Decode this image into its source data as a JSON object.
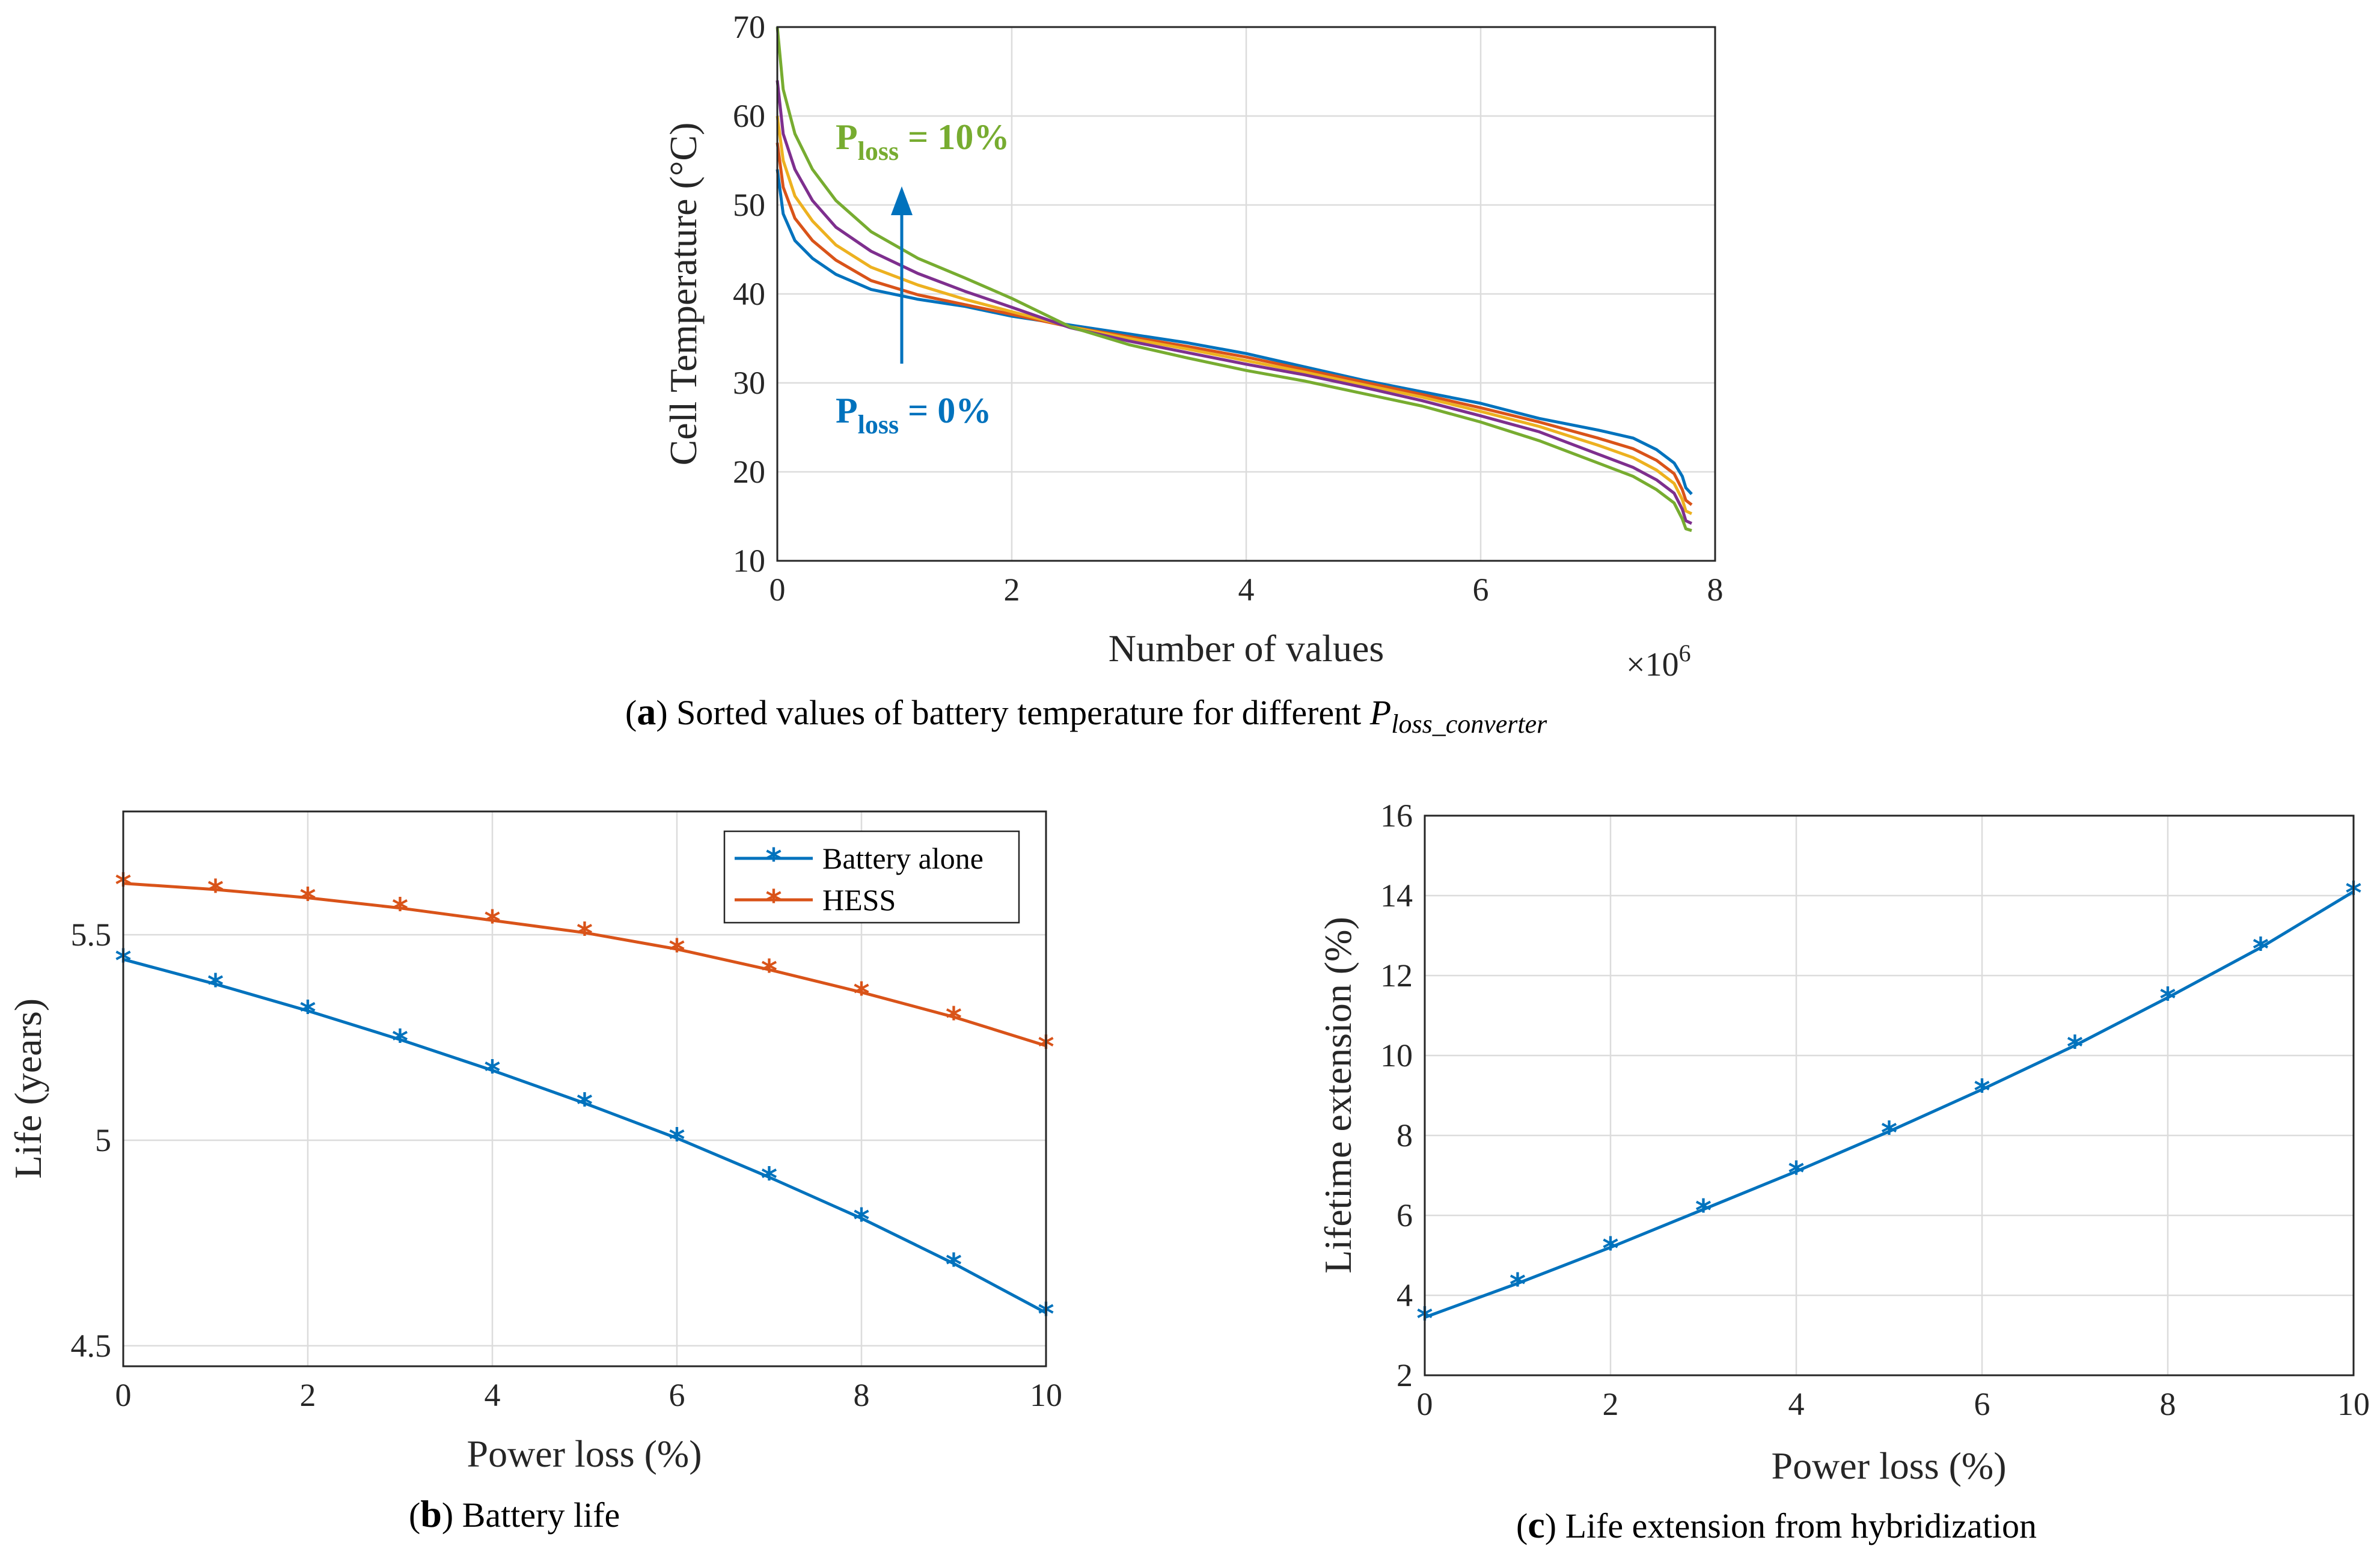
{
  "colors": {
    "blue": "#0072BD",
    "orange": "#D95319",
    "yellow": "#EDB120",
    "purple": "#7E2F8E",
    "green": "#77AC30",
    "grid": "#dcdcdc",
    "axis": "#262626"
  },
  "chart_data": [
    {
      "id": "a",
      "type": "line",
      "xlabel": "Number of values",
      "ylabel": "Cell Temperature (°C)",
      "xlim": [
        0,
        8
      ],
      "ylim": [
        10,
        70
      ],
      "xticks": [
        "0",
        "2",
        "4",
        "6",
        "8"
      ],
      "yticks": [
        "10",
        "20",
        "30",
        "40",
        "50",
        "60",
        "70"
      ],
      "multiplier": {
        "base": "×10",
        "exp": "6"
      },
      "caption": {
        "letter": "a",
        "text": " Sorted values of battery temperature for different ",
        "sym": "P",
        "sub": "loss_converter"
      },
      "annotations": [
        {
          "main": "P",
          "sub": "loss",
          "rest": " = 10%",
          "color": "#77AC30"
        },
        {
          "main": "P",
          "sub": "loss",
          "rest": " = 0%",
          "color": "#0072BD"
        }
      ],
      "series": [
        {
          "color": "#0072BD",
          "points": [
            [
              0,
              54
            ],
            [
              0.05,
              49
            ],
            [
              0.15,
              46
            ],
            [
              0.3,
              44
            ],
            [
              0.5,
              42.2
            ],
            [
              0.8,
              40.5
            ],
            [
              1.2,
              39.4
            ],
            [
              1.6,
              38.6
            ],
            [
              2.0,
              37.5
            ],
            [
              2.5,
              36.5
            ],
            [
              3.0,
              35.5
            ],
            [
              3.5,
              34.5
            ],
            [
              4.0,
              33.3
            ],
            [
              4.5,
              31.8
            ],
            [
              5.0,
              30.3
            ],
            [
              5.5,
              29.0
            ],
            [
              6.0,
              27.7
            ],
            [
              6.5,
              26.0
            ],
            [
              7.0,
              24.7
            ],
            [
              7.3,
              23.8
            ],
            [
              7.5,
              22.5
            ],
            [
              7.65,
              21.0
            ],
            [
              7.72,
              19.5
            ],
            [
              7.75,
              18.2
            ],
            [
              7.8,
              17.5
            ]
          ]
        },
        {
          "color": "#D95319",
          "points": [
            [
              0,
              57
            ],
            [
              0.05,
              52
            ],
            [
              0.15,
              48.5
            ],
            [
              0.3,
              46
            ],
            [
              0.5,
              43.8
            ],
            [
              0.8,
              41.5
            ],
            [
              1.2,
              39.9
            ],
            [
              1.6,
              38.8
            ],
            [
              2.0,
              37.7
            ],
            [
              2.5,
              36.3
            ],
            [
              3.0,
              35.2
            ],
            [
              3.5,
              34.1
            ],
            [
              4.0,
              32.9
            ],
            [
              4.5,
              31.5
            ],
            [
              5.0,
              30.1
            ],
            [
              5.5,
              28.7
            ],
            [
              6.0,
              27.2
            ],
            [
              6.5,
              25.6
            ],
            [
              7.0,
              23.8
            ],
            [
              7.3,
              22.6
            ],
            [
              7.5,
              21.3
            ],
            [
              7.65,
              19.8
            ],
            [
              7.72,
              18.0
            ],
            [
              7.75,
              16.8
            ],
            [
              7.8,
              16.3
            ]
          ]
        },
        {
          "color": "#EDB120",
          "points": [
            [
              0,
              60
            ],
            [
              0.05,
              55
            ],
            [
              0.15,
              51
            ],
            [
              0.3,
              48.2
            ],
            [
              0.5,
              45.5
            ],
            [
              0.8,
              43
            ],
            [
              1.2,
              41
            ],
            [
              1.6,
              39.4
            ],
            [
              2.0,
              38.0
            ],
            [
              2.5,
              36.3
            ],
            [
              3.0,
              35.0
            ],
            [
              3.5,
              33.8
            ],
            [
              4.0,
              32.5
            ],
            [
              4.5,
              31.2
            ],
            [
              5.0,
              29.8
            ],
            [
              5.5,
              28.4
            ],
            [
              6.0,
              26.8
            ],
            [
              6.5,
              25.1
            ],
            [
              7.0,
              23.0
            ],
            [
              7.3,
              21.6
            ],
            [
              7.5,
              20.2
            ],
            [
              7.65,
              18.7
            ],
            [
              7.72,
              16.9
            ],
            [
              7.75,
              15.6
            ],
            [
              7.8,
              15.3
            ]
          ]
        },
        {
          "color": "#7E2F8E",
          "points": [
            [
              0,
              64
            ],
            [
              0.05,
              58
            ],
            [
              0.15,
              54
            ],
            [
              0.3,
              50.5
            ],
            [
              0.5,
              47.5
            ],
            [
              0.8,
              44.8
            ],
            [
              1.2,
              42.3
            ],
            [
              1.6,
              40.3
            ],
            [
              2.0,
              38.5
            ],
            [
              2.5,
              36.2
            ],
            [
              3.0,
              34.7
            ],
            [
              3.5,
              33.4
            ],
            [
              4.0,
              32.1
            ],
            [
              4.5,
              30.9
            ],
            [
              5.0,
              29.5
            ],
            [
              5.5,
              28.0
            ],
            [
              6.0,
              26.3
            ],
            [
              6.5,
              24.5
            ],
            [
              7.0,
              22.0
            ],
            [
              7.3,
              20.5
            ],
            [
              7.5,
              19.1
            ],
            [
              7.65,
              17.6
            ],
            [
              7.72,
              15.8
            ],
            [
              7.75,
              14.5
            ],
            [
              7.8,
              14.2
            ]
          ]
        },
        {
          "color": "#77AC30",
          "points": [
            [
              0,
              70
            ],
            [
              0.05,
              63
            ],
            [
              0.15,
              58
            ],
            [
              0.3,
              54
            ],
            [
              0.5,
              50.5
            ],
            [
              0.8,
              47
            ],
            [
              1.2,
              44
            ],
            [
              1.6,
              41.8
            ],
            [
              2.0,
              39.5
            ],
            [
              2.5,
              36.3
            ],
            [
              3.0,
              34.3
            ],
            [
              3.5,
              32.8
            ],
            [
              4.0,
              31.4
            ],
            [
              4.5,
              30.2
            ],
            [
              5.0,
              28.8
            ],
            [
              5.5,
              27.4
            ],
            [
              6.0,
              25.6
            ],
            [
              6.5,
              23.5
            ],
            [
              7.0,
              21.0
            ],
            [
              7.3,
              19.5
            ],
            [
              7.5,
              18.0
            ],
            [
              7.65,
              16.5
            ],
            [
              7.72,
              14.7
            ],
            [
              7.75,
              13.6
            ],
            [
              7.8,
              13.4
            ]
          ]
        }
      ]
    },
    {
      "id": "b",
      "type": "line",
      "xlabel": "Power loss (%)",
      "ylabel": "Life (years)",
      "xlim": [
        0,
        10
      ],
      "ylim": [
        4.45,
        5.8
      ],
      "xticks": [
        "0",
        "2",
        "4",
        "6",
        "8",
        "10"
      ],
      "yticks": [
        "4.5",
        "5",
        "5.5"
      ],
      "ytick_values": [
        4.5,
        5,
        5.5
      ],
      "caption": {
        "letter": "b",
        "text": " Battery life"
      },
      "legend": "top-right",
      "x": [
        0,
        1,
        2,
        3,
        4,
        5,
        6,
        7,
        8,
        9,
        10
      ],
      "series": [
        {
          "name": "Battery alone",
          "color": "#0072BD",
          "values": [
            5.44,
            5.38,
            5.315,
            5.245,
            5.17,
            5.09,
            5.005,
            4.91,
            4.81,
            4.7,
            4.58
          ]
        },
        {
          "name": "HESS",
          "color": "#D95319",
          "values": [
            5.625,
            5.61,
            5.59,
            5.565,
            5.535,
            5.505,
            5.465,
            5.415,
            5.36,
            5.3,
            5.23
          ]
        }
      ]
    },
    {
      "id": "c",
      "type": "line",
      "xlabel": "Power loss (%)",
      "ylabel": "Lifetime extension (%)",
      "xlim": [
        0,
        10
      ],
      "ylim": [
        2,
        16
      ],
      "xticks": [
        "0",
        "2",
        "4",
        "6",
        "8",
        "10"
      ],
      "yticks": [
        "2",
        "4",
        "6",
        "8",
        "10",
        "12",
        "14",
        "16"
      ],
      "caption": {
        "letter": "c",
        "text": " Life extension from hybridization"
      },
      "x": [
        0,
        1,
        2,
        3,
        4,
        5,
        6,
        7,
        8,
        9,
        10
      ],
      "series": [
        {
          "color": "#0072BD",
          "values": [
            3.45,
            4.3,
            5.2,
            6.15,
            7.1,
            8.1,
            9.15,
            10.25,
            11.45,
            12.7,
            14.1
          ]
        }
      ]
    }
  ]
}
